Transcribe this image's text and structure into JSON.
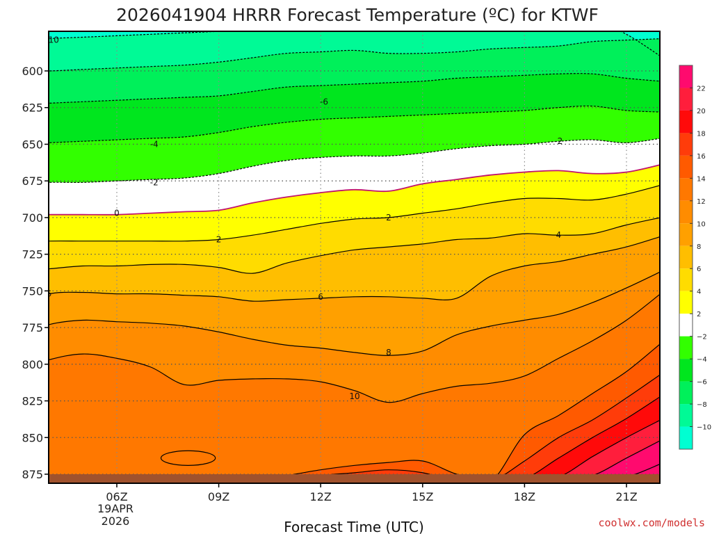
{
  "chart_data": {
    "type": "heatmap",
    "title": "2026041904 HRRR Forecast Temperature (ºC) for KTWF",
    "xlabel": "Forecast Time (UTC)",
    "ylabel": "",
    "credit": "coolwx.com/models",
    "date_label": [
      "19APR",
      "2026"
    ],
    "x_ticks": [
      "06Z",
      "09Z",
      "12Z",
      "15Z",
      "18Z",
      "21Z"
    ],
    "x_tick_hours": [
      6,
      9,
      12,
      15,
      18,
      21
    ],
    "x_range": [
      3,
      22
    ],
    "y_ticks": [
      600,
      625,
      650,
      675,
      700,
      725,
      750,
      775,
      800,
      825,
      850,
      875
    ],
    "y_range": [
      578,
      880
    ],
    "pressure_unit": "hPa",
    "hours": [
      3,
      4,
      5,
      6,
      7,
      8,
      9,
      10,
      11,
      12,
      13,
      14,
      15,
      16,
      17,
      18,
      19,
      20,
      21,
      22
    ],
    "isotherms": [
      {
        "temp": -10,
        "pressure": [
          580,
          578,
          577,
          576,
          575,
          574,
          573,
          572,
          571,
          570,
          569,
          568,
          567,
          566,
          565,
          564,
          563,
          565,
          575,
          590
        ]
      },
      {
        "temp": -8,
        "pressure": [
          600,
          600,
          599,
          598,
          597,
          596,
          594,
          591,
          588,
          587,
          586,
          588,
          588,
          587,
          585,
          584,
          583,
          580,
          579,
          578
        ]
      },
      {
        "temp": -6,
        "pressure": [
          623,
          622,
          621,
          620,
          619,
          618,
          617,
          614,
          611,
          610,
          609,
          608,
          607,
          605,
          604,
          603,
          602,
          602,
          605,
          607
        ]
      },
      {
        "temp": -4,
        "pressure": [
          650,
          649,
          648,
          647,
          646,
          645,
          642,
          638,
          635,
          633,
          632,
          631,
          630,
          629,
          628,
          627,
          625,
          624,
          627,
          628
        ]
      },
      {
        "temp": -2,
        "pressure": [
          677,
          676,
          676,
          675,
          674,
          673,
          670,
          665,
          661,
          659,
          658,
          658,
          656,
          653,
          651,
          650,
          648,
          647,
          649,
          646
        ]
      },
      {
        "temp": 0,
        "pressure": [
          698,
          698,
          698,
          698,
          697,
          696,
          695,
          690,
          686,
          683,
          681,
          682,
          677,
          674,
          671,
          669,
          668,
          670,
          669,
          664
        ]
      },
      {
        "temp": 2,
        "pressure": [
          717,
          716,
          716,
          716,
          716,
          716,
          715,
          712,
          708,
          704,
          701,
          700,
          697,
          694,
          690,
          687,
          687,
          688,
          684,
          678
        ]
      },
      {
        "temp": 4,
        "pressure": [
          737,
          735,
          733,
          733,
          732,
          732,
          734,
          738,
          731,
          726,
          722,
          720,
          718,
          715,
          714,
          711,
          712,
          711,
          705,
          700
        ]
      },
      {
        "temp": 6,
        "pressure": [
          760,
          752,
          751,
          752,
          752,
          753,
          754,
          757,
          756,
          755,
          754,
          754,
          755,
          755,
          740,
          733,
          730,
          725,
          720,
          713
        ]
      },
      {
        "temp": 8,
        "pressure": [
          782,
          773,
          770,
          771,
          772,
          774,
          778,
          783,
          787,
          789,
          792,
          794,
          791,
          780,
          774,
          770,
          766,
          758,
          748,
          737
        ]
      },
      {
        "temp": 10,
        "pressure": [
          805,
          797,
          793,
          796,
          802,
          814,
          811,
          810,
          810,
          812,
          818,
          826,
          820,
          815,
          813,
          808,
          796,
          784,
          770,
          752
        ]
      },
      {
        "temp": 12,
        "pressure": [
          880,
          880,
          880,
          880,
          880,
          880,
          880,
          880,
          876,
          872,
          869,
          867,
          866,
          875,
          880,
          848,
          835,
          820,
          805,
          786
        ]
      },
      {
        "temp": 14,
        "pressure": [
          880,
          880,
          880,
          880,
          880,
          880,
          880,
          880,
          880,
          876,
          874,
          872,
          874,
          880,
          880,
          866,
          850,
          838,
          823,
          807
        ]
      },
      {
        "temp": 16,
        "pressure": [
          880,
          880,
          880,
          880,
          880,
          880,
          880,
          880,
          880,
          880,
          880,
          880,
          880,
          880,
          880,
          878,
          864,
          850,
          837,
          822
        ]
      },
      {
        "temp": 18,
        "pressure": [
          880,
          880,
          880,
          880,
          880,
          880,
          880,
          880,
          880,
          880,
          880,
          880,
          880,
          880,
          880,
          880,
          877,
          863,
          850,
          838
        ]
      },
      {
        "temp": 20,
        "pressure": [
          880,
          880,
          880,
          880,
          880,
          880,
          880,
          880,
          880,
          880,
          880,
          880,
          880,
          880,
          880,
          880,
          880,
          876,
          864,
          852
        ]
      },
      {
        "temp": 22,
        "pressure": [
          880,
          880,
          880,
          880,
          880,
          880,
          880,
          880,
          880,
          880,
          880,
          880,
          880,
          880,
          880,
          880,
          880,
          880,
          877,
          868
        ]
      }
    ],
    "warm_pockets": [
      {
        "temp": 12,
        "center_hour": 3.3,
        "center_pressure": 838,
        "half_width_hours": 0.5,
        "half_height_hpa": 15
      },
      {
        "temp": 12,
        "center_hour": 8.1,
        "center_pressure": 864,
        "half_width_hours": 0.8,
        "half_height_hpa": 5
      }
    ],
    "contour_labels": [
      {
        "text": "-10",
        "hour": 4.1,
        "pressure": 579
      },
      {
        "text": "-6",
        "hour": 12.1,
        "pressure": 621
      },
      {
        "text": "-4",
        "hour": 7.1,
        "pressure": 650
      },
      {
        "text": "-2",
        "hour": 7.1,
        "pressure": 676
      },
      {
        "text": "-2",
        "hour": 19.0,
        "pressure": 648
      },
      {
        "text": "0",
        "hour": 6.0,
        "pressure": 697
      },
      {
        "text": "2",
        "hour": 9.0,
        "pressure": 715
      },
      {
        "text": "2",
        "hour": 14.0,
        "pressure": 700
      },
      {
        "text": "4",
        "hour": 19.0,
        "pressure": 712
      },
      {
        "text": "6",
        "hour": 4.0,
        "pressure": 752
      },
      {
        "text": "6",
        "hour": 12.0,
        "pressure": 754
      },
      {
        "text": "8",
        "hour": 14.0,
        "pressure": 792
      },
      {
        "text": "10",
        "hour": 13.0,
        "pressure": 822
      }
    ],
    "colorbar": {
      "ticks": [
        "22",
        "20",
        "18",
        "16",
        "14",
        "12",
        "10",
        "8",
        "6",
        "4",
        "2",
        "−2",
        "−4",
        "−6",
        "−8",
        "−10"
      ],
      "bins": [
        {
          "range": "22-24",
          "color": "#ff0a6e"
        },
        {
          "range": "20-22",
          "color": "#ff1e3c"
        },
        {
          "range": "18-20",
          "color": "#ff0a0a"
        },
        {
          "range": "16-18",
          "color": "#ff3c0a"
        },
        {
          "range": "14-16",
          "color": "#ff5a00"
        },
        {
          "range": "12-14",
          "color": "#ff7800"
        },
        {
          "range": "10-12",
          "color": "#ff8c00"
        },
        {
          "range": "8-10",
          "color": "#ffa000"
        },
        {
          "range": "6-8",
          "color": "#ffbe00"
        },
        {
          "range": "4-6",
          "color": "#ffdc00"
        },
        {
          "range": "2-4",
          "color": "#ffff00"
        },
        {
          "range": "-2-2",
          "color": "#ffffff"
        },
        {
          "range": "-4--2",
          "color": "#32ff00"
        },
        {
          "range": "-6--4",
          "color": "#00e61e"
        },
        {
          "range": "-8--6",
          "color": "#00f05a"
        },
        {
          "range": "-10--8",
          "color": "#00fa96"
        },
        {
          "range": "-12--10",
          "color": "#00ffd2"
        }
      ]
    },
    "terrain_color": "#a0522d",
    "freezing_line_color": "#c0146e"
  }
}
